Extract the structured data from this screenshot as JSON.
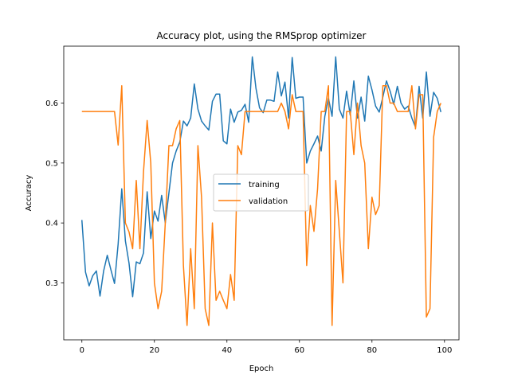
{
  "chart_data": {
    "type": "line",
    "title": "Accuracy plot, using the RMSprop optimizer",
    "xlabel": "Epoch",
    "ylabel": "Accuracy",
    "xlim": [
      -5,
      104
    ],
    "ylim": [
      0.205,
      0.695
    ],
    "xticks": [
      0,
      20,
      40,
      60,
      80,
      100
    ],
    "xtick_labels": [
      "0",
      "20",
      "40",
      "60",
      "80",
      "100"
    ],
    "yticks": [
      0.3,
      0.4,
      0.5,
      0.6
    ],
    "ytick_labels": [
      "0.3",
      "0.4",
      "0.5",
      "0.6"
    ],
    "grid": false,
    "legend_position": "center",
    "series": [
      {
        "name": "training",
        "color": "#1f77b4",
        "x": [
          0,
          1,
          2,
          3,
          4,
          5,
          6,
          7,
          8,
          9,
          10,
          11,
          12,
          13,
          14,
          15,
          16,
          17,
          18,
          19,
          20,
          21,
          22,
          23,
          24,
          25,
          26,
          27,
          28,
          29,
          30,
          31,
          32,
          33,
          34,
          35,
          36,
          37,
          38,
          39,
          40,
          41,
          42,
          43,
          44,
          45,
          46,
          47,
          48,
          49,
          50,
          51,
          52,
          53,
          54,
          55,
          56,
          57,
          58,
          59,
          60,
          61,
          62,
          63,
          64,
          65,
          66,
          67,
          68,
          69,
          70,
          71,
          72,
          73,
          74,
          75,
          76,
          77,
          78,
          79,
          80,
          81,
          82,
          83,
          84,
          85,
          86,
          87,
          88,
          89,
          90,
          91,
          92,
          93,
          94,
          95,
          96,
          97,
          98,
          99
        ],
        "values": [
          0.405,
          0.318,
          0.295,
          0.312,
          0.32,
          0.278,
          0.32,
          0.346,
          0.322,
          0.299,
          0.365,
          0.457,
          0.37,
          0.333,
          0.277,
          0.335,
          0.332,
          0.35,
          0.452,
          0.374,
          0.42,
          0.403,
          0.446,
          0.4,
          0.45,
          0.5,
          0.52,
          0.535,
          0.57,
          0.562,
          0.575,
          0.632,
          0.59,
          0.57,
          0.562,
          0.555,
          0.603,
          0.615,
          0.615,
          0.537,
          0.532,
          0.59,
          0.568,
          0.585,
          0.588,
          0.598,
          0.568,
          0.677,
          0.625,
          0.592,
          0.584,
          0.605,
          0.605,
          0.603,
          0.652,
          0.612,
          0.635,
          0.575,
          0.676,
          0.608,
          0.61,
          0.61,
          0.5,
          0.52,
          0.532,
          0.545,
          0.52,
          0.578,
          0.608,
          0.578,
          0.677,
          0.59,
          0.575,
          0.62,
          0.58,
          0.637,
          0.575,
          0.61,
          0.57,
          0.645,
          0.622,
          0.595,
          0.585,
          0.61,
          0.637,
          0.62,
          0.598,
          0.628,
          0.6,
          0.59,
          0.595,
          0.575,
          0.56,
          0.628,
          0.575,
          0.652,
          0.578,
          0.618,
          0.608,
          0.585
        ]
      },
      {
        "name": "validation",
        "color": "#ff7f0e",
        "x": [
          0,
          1,
          2,
          3,
          4,
          5,
          6,
          7,
          8,
          9,
          10,
          11,
          12,
          13,
          14,
          15,
          16,
          17,
          18,
          19,
          20,
          21,
          22,
          23,
          24,
          25,
          26,
          27,
          28,
          29,
          30,
          31,
          32,
          33,
          34,
          35,
          36,
          37,
          38,
          39,
          40,
          41,
          42,
          43,
          44,
          45,
          46,
          47,
          48,
          49,
          50,
          51,
          52,
          53,
          54,
          55,
          56,
          57,
          58,
          59,
          60,
          61,
          62,
          63,
          64,
          65,
          66,
          67,
          68,
          69,
          70,
          71,
          72,
          73,
          74,
          75,
          76,
          77,
          78,
          79,
          80,
          81,
          82,
          83,
          84,
          85,
          86,
          87,
          88,
          89,
          90,
          91,
          92,
          93,
          94,
          95,
          96,
          97,
          98,
          99
        ],
        "values": [
          0.586,
          0.586,
          0.586,
          0.586,
          0.586,
          0.586,
          0.586,
          0.586,
          0.586,
          0.586,
          0.53,
          0.629,
          0.4,
          0.385,
          0.357,
          0.471,
          0.357,
          0.486,
          0.571,
          0.5,
          0.3,
          0.257,
          0.286,
          0.4,
          0.529,
          0.529,
          0.557,
          0.571,
          0.329,
          0.229,
          0.357,
          0.257,
          0.529,
          0.443,
          0.257,
          0.229,
          0.4,
          0.271,
          0.286,
          0.271,
          0.257,
          0.314,
          0.271,
          0.529,
          0.514,
          0.586,
          0.586,
          0.586,
          0.586,
          0.586,
          0.586,
          0.586,
          0.586,
          0.586,
          0.586,
          0.6,
          0.586,
          0.557,
          0.614,
          0.586,
          0.586,
          0.586,
          0.329,
          0.429,
          0.386,
          0.457,
          0.586,
          0.586,
          0.629,
          0.229,
          0.471,
          0.386,
          0.3,
          0.586,
          0.586,
          0.514,
          0.6,
          0.529,
          0.5,
          0.357,
          0.443,
          0.414,
          0.429,
          0.629,
          0.629,
          0.6,
          0.6,
          0.586,
          0.586,
          0.586,
          0.586,
          0.629,
          0.557,
          0.614,
          0.614,
          0.243,
          0.257,
          0.543,
          0.586,
          0.6
        ]
      }
    ]
  }
}
